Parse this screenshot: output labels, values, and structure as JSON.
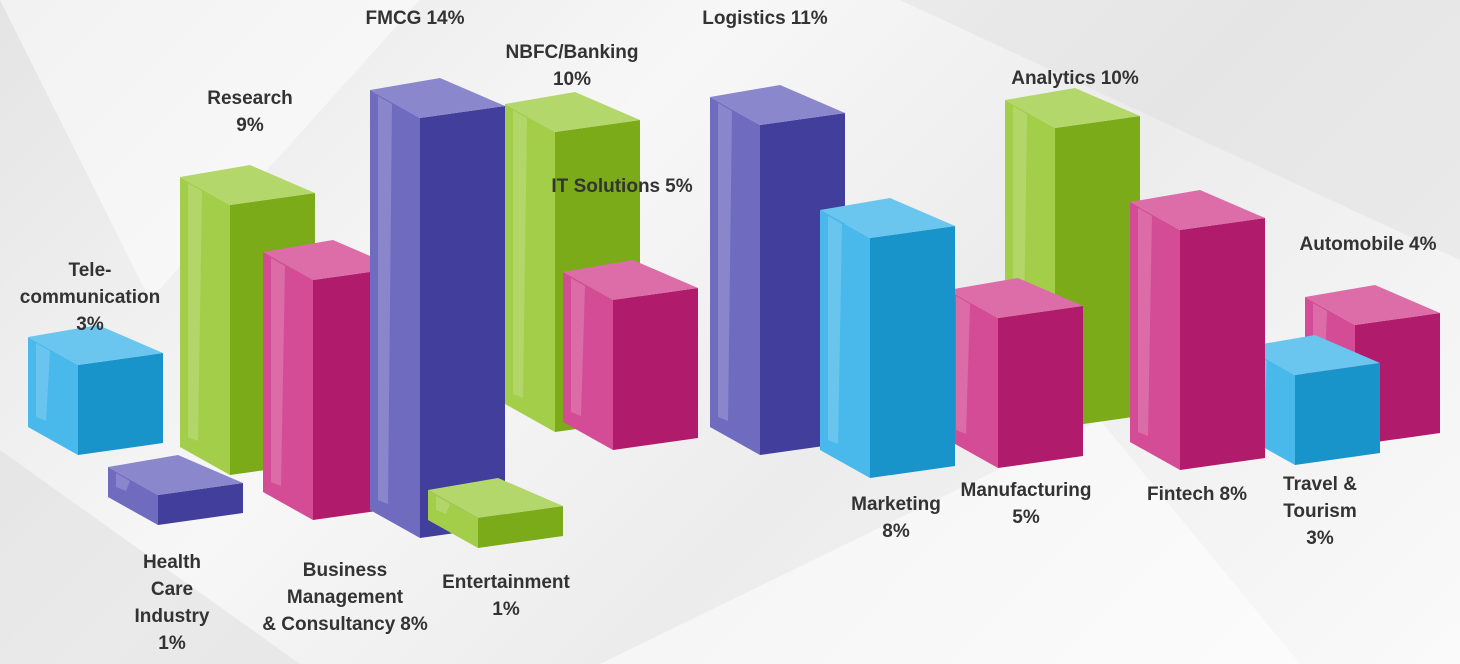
{
  "chart_data": {
    "type": "bar3d",
    "categories": [
      [
        "Tele-",
        "communication"
      ],
      [
        "Research"
      ],
      [
        "Health",
        "Care",
        "Industry"
      ],
      [
        "Business",
        "Management",
        "& Consultancy"
      ],
      [
        "FMCG"
      ],
      [
        "NBFC/Banking"
      ],
      [
        "Entertainment"
      ],
      [
        "IT Solutions"
      ],
      [
        "Logistics"
      ],
      [
        "Marketing"
      ],
      [
        "Analytics"
      ],
      [
        "Manufacturing"
      ],
      [
        "Fintech"
      ],
      [
        "Automobile"
      ],
      [
        "Travel &",
        "Tourism"
      ]
    ],
    "values": [
      3,
      9,
      1,
      8,
      14,
      10,
      1,
      5,
      11,
      8,
      10,
      5,
      8,
      4,
      3
    ],
    "value_labels": [
      "3%",
      "9%",
      "1%",
      "8%",
      "14%",
      "10%",
      "1%",
      "5%",
      "11%",
      "8%",
      "10%",
      "5%",
      "8%",
      "4%",
      "3%"
    ],
    "colors": [
      "#1ba8e6",
      "#8cc21c",
      "#4b47b0",
      "#c91f7a",
      "#4b47b0",
      "#8cc21c",
      "#8cc21c",
      "#c91f7a",
      "#4b47b0",
      "#1ba8e6",
      "#8cc21c",
      "#c91f7a",
      "#c91f7a",
      "#c91f7a",
      "#1ba8e6"
    ]
  }
}
